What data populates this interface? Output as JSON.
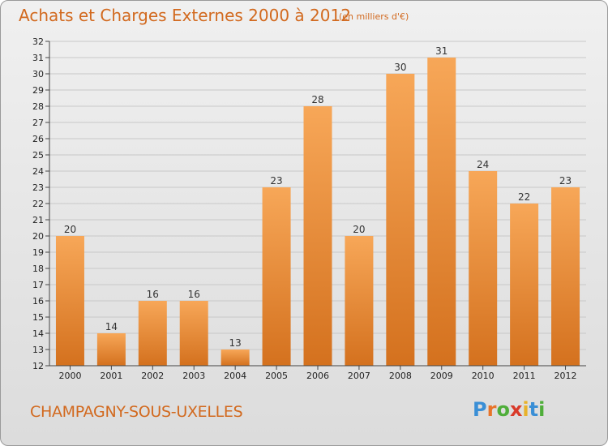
{
  "chart_data": {
    "type": "bar",
    "title": "Achats et Charges Externes 2000 à 2012",
    "subtitle": "(en milliers d'€)",
    "categories": [
      "2000",
      "2001",
      "2002",
      "2003",
      "2004",
      "2005",
      "2006",
      "2007",
      "2008",
      "2009",
      "2010",
      "2011",
      "2012"
    ],
    "values": [
      20,
      14,
      16,
      16,
      13,
      23,
      28,
      20,
      30,
      31,
      24,
      22,
      23
    ],
    "ylim": [
      12,
      32
    ],
    "yticks": [
      12,
      13,
      14,
      15,
      16,
      17,
      18,
      19,
      20,
      21,
      22,
      23,
      24,
      25,
      26,
      27,
      28,
      29,
      30,
      31,
      32
    ],
    "grid": true,
    "colors": {
      "bar_top": "#f7a758",
      "bar_bottom": "#d4711e",
      "text": "#d2691e"
    }
  },
  "footer": {
    "city": "CHAMPAGNY-SOUS-UXELLES"
  },
  "brand": {
    "letters": [
      "P",
      "r",
      "o",
      "x",
      "i",
      "t",
      "i"
    ],
    "colors": [
      "#3a8fd6",
      "#e8742a",
      "#4fae3a",
      "#d93a2a",
      "#e8b22a",
      "#3a8fd6",
      "#4fae3a"
    ]
  }
}
